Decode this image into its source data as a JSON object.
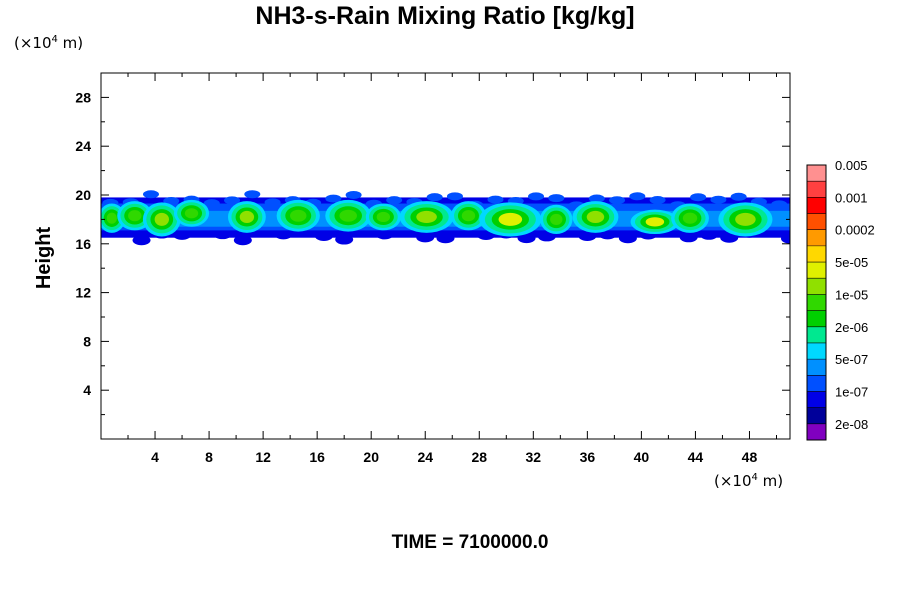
{
  "chart_data": {
    "type": "heatmap",
    "title": "NH3-s-Rain Mixing Ratio [kg/kg]",
    "xlabel": "",
    "ylabel": "Height",
    "x_unit_prefix": "(×10",
    "x_unit_exp": "4",
    "x_unit_suffix": " m)",
    "y_unit_prefix": "(×10",
    "y_unit_exp": "4",
    "y_unit_suffix": " m)",
    "xlim": [
      0,
      51
    ],
    "ylim": [
      0,
      30
    ],
    "x_ticks": [
      4,
      8,
      12,
      16,
      20,
      24,
      28,
      32,
      36,
      40,
      44,
      48
    ],
    "x_tick_labels": [
      "4",
      "8",
      "12",
      "16",
      "20",
      "24",
      "28",
      "32",
      "36",
      "40",
      "44",
      "48"
    ],
    "y_ticks": [
      4,
      8,
      12,
      16,
      20,
      24,
      28
    ],
    "y_tick_labels": [
      "4",
      "8",
      "12",
      "16",
      "20",
      "24",
      "28"
    ],
    "band": {
      "y_bottom": 16.5,
      "y_top": 19.8,
      "y_core": 17.9
    },
    "cells": [
      {
        "x": 0.8,
        "y": 18.1,
        "w": 1.0,
        "h": 1.2,
        "level": 8
      },
      {
        "x": 2.5,
        "y": 18.3,
        "w": 1.3,
        "h": 1.2,
        "level": 8
      },
      {
        "x": 4.5,
        "y": 18.0,
        "w": 1.4,
        "h": 1.4,
        "level": 9
      },
      {
        "x": 6.7,
        "y": 18.5,
        "w": 1.3,
        "h": 1.1,
        "level": 8
      },
      {
        "x": 10.8,
        "y": 18.2,
        "w": 1.4,
        "h": 1.3,
        "level": 9
      },
      {
        "x": 14.6,
        "y": 18.3,
        "w": 1.6,
        "h": 1.3,
        "level": 8
      },
      {
        "x": 18.3,
        "y": 18.3,
        "w": 1.7,
        "h": 1.3,
        "level": 8
      },
      {
        "x": 20.9,
        "y": 18.2,
        "w": 1.3,
        "h": 1.1,
        "level": 8
      },
      {
        "x": 24.1,
        "y": 18.2,
        "w": 2.0,
        "h": 1.3,
        "level": 9
      },
      {
        "x": 27.2,
        "y": 18.3,
        "w": 1.3,
        "h": 1.2,
        "level": 8
      },
      {
        "x": 30.3,
        "y": 18.0,
        "w": 2.3,
        "h": 1.4,
        "level": 10
      },
      {
        "x": 33.7,
        "y": 18.0,
        "w": 1.2,
        "h": 1.2,
        "level": 8
      },
      {
        "x": 36.6,
        "y": 18.2,
        "w": 1.7,
        "h": 1.3,
        "level": 9
      },
      {
        "x": 41.0,
        "y": 17.8,
        "w": 1.8,
        "h": 1.0,
        "level": 10
      },
      {
        "x": 43.6,
        "y": 18.1,
        "w": 1.4,
        "h": 1.2,
        "level": 8
      },
      {
        "x": 47.7,
        "y": 18.0,
        "w": 2.0,
        "h": 1.4,
        "level": 9
      }
    ],
    "colorbar": {
      "colors": [
        "#8000c0",
        "#00009a",
        "#0000e6",
        "#0050ff",
        "#0090ff",
        "#00d8ff",
        "#00e890",
        "#00d000",
        "#30d800",
        "#90e000",
        "#e0f000",
        "#ffd800",
        "#ff9a00",
        "#ff5000",
        "#ff0000",
        "#ff4040",
        "#ff9090"
      ],
      "labels": [
        "2e-08",
        "1e-07",
        "5e-07",
        "2e-06",
        "1e-05",
        "5e-05",
        "0.0002",
        "0.001",
        "0.005"
      ]
    },
    "time_label": "TIME = 7100000.0"
  }
}
